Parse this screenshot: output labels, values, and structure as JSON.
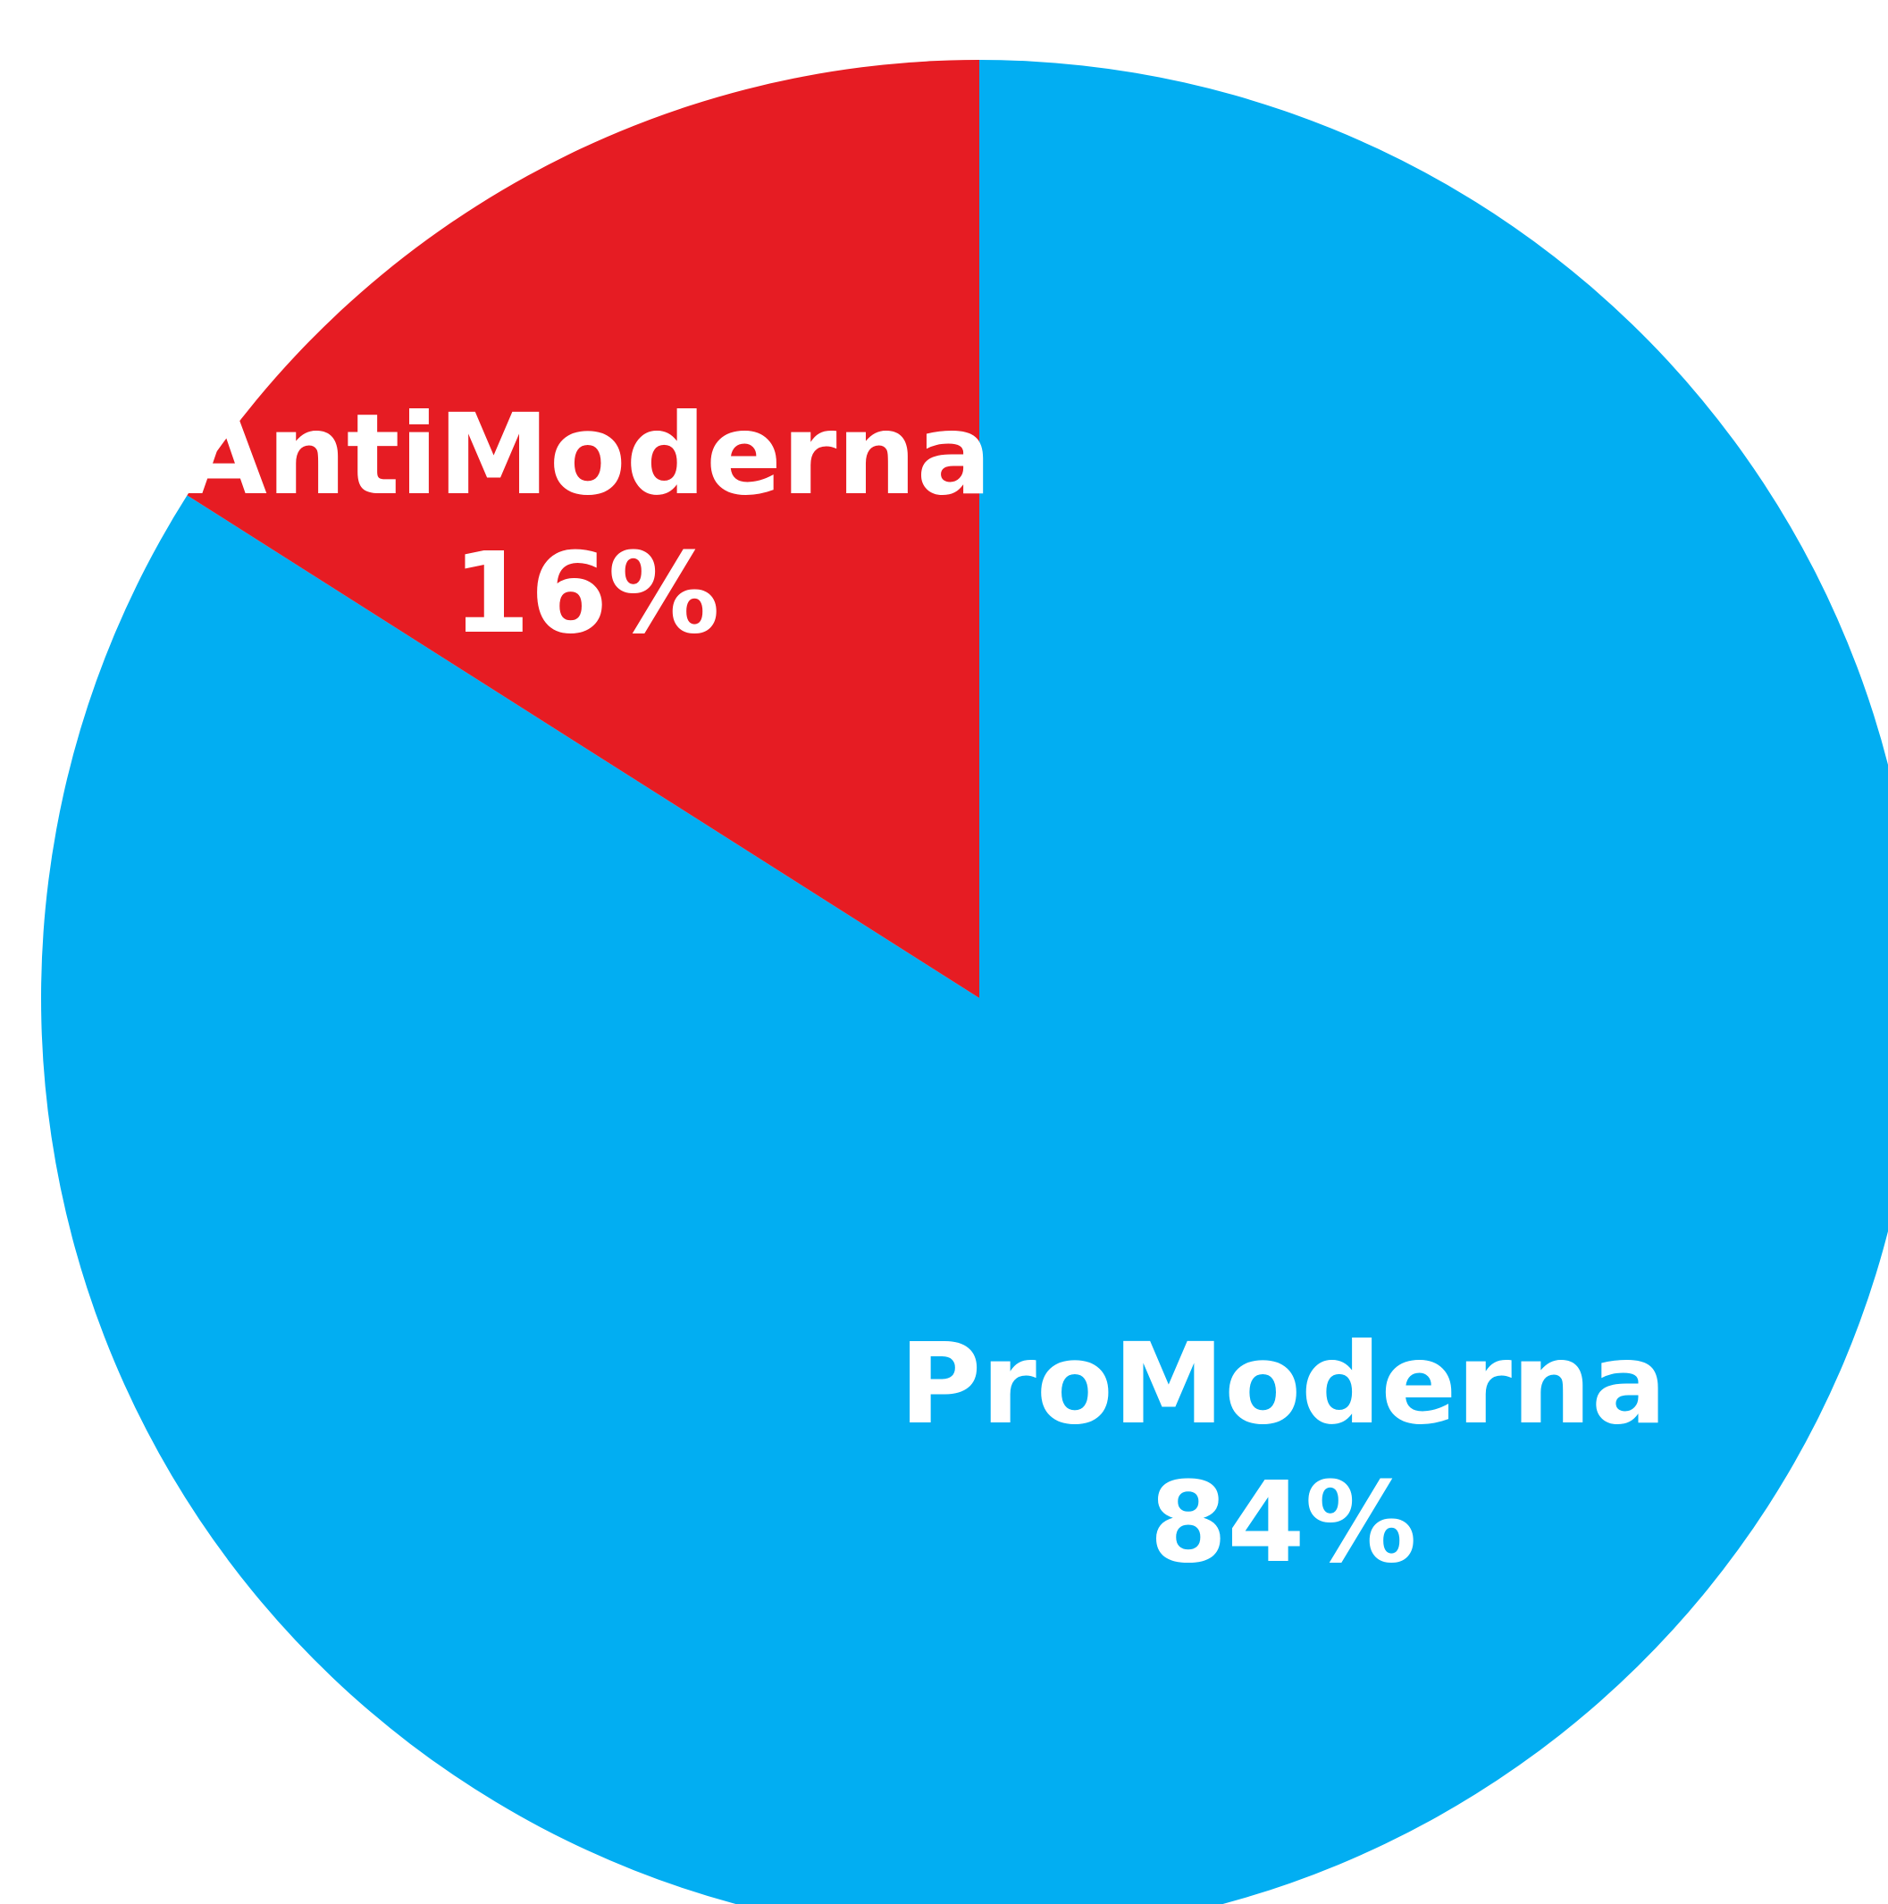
{
  "chart_data": {
    "type": "pie",
    "start": "12 o'clock, clockwise",
    "slices": [
      {
        "label": "ProModerna",
        "value": 84,
        "display": "84%",
        "color": "#02AEF2"
      },
      {
        "label": "AntiModerna",
        "value": 16,
        "display": "16%",
        "color": "#E61C23"
      }
    ],
    "legend": "none (labels on slices)",
    "label_color": "#FFFFFF"
  }
}
